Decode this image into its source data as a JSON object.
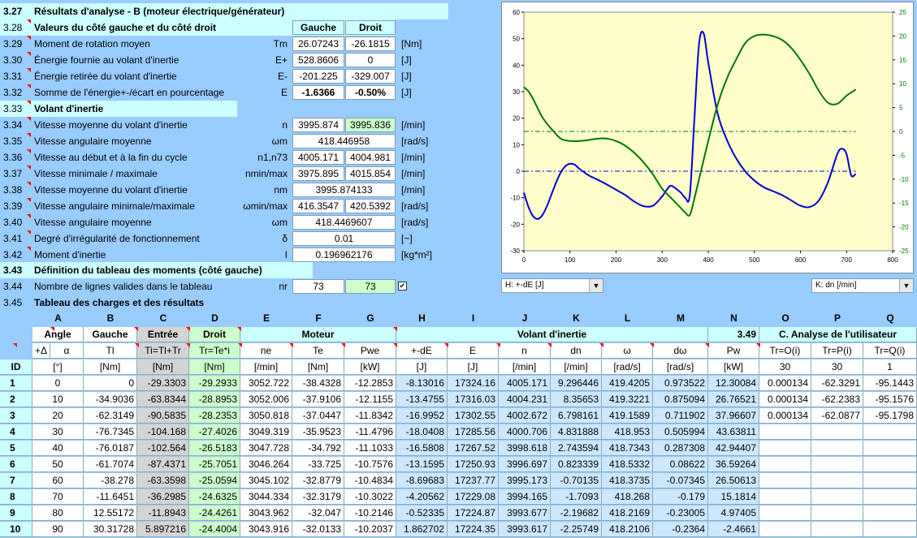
{
  "section_title": {
    "num": "3.27",
    "text": "Résultats d'analyse - B (moteur électrique/générateur)"
  },
  "rows": [
    {
      "num": "3.28",
      "label": "Valeurs du côté gauche et du côté droit",
      "bold": true,
      "sym": "",
      "left": "Gauche",
      "right": "Droit",
      "unit": ""
    },
    {
      "num": "3.29",
      "label": "Moment de rotation moyen",
      "sym": "Tm",
      "left": "26.07243",
      "right": "-26.1815",
      "unit": "[Nm]"
    },
    {
      "num": "3.30",
      "label": "Énergie fournie au volant d'inertie",
      "sym": "E+",
      "left": "528.8606",
      "right": "0",
      "unit": "[J]"
    },
    {
      "num": "3.31",
      "label": "Énergie retirée du volant d'inertie",
      "sym": "E-",
      "left": "-201.225",
      "right": "-329.007",
      "unit": "[J]"
    },
    {
      "num": "3.32",
      "label": "Somme de l'énergie+-/écart en pourcentage",
      "sym": "E",
      "left": "-1.6366",
      "right": "-0.50%",
      "unit": "[J]"
    },
    {
      "num": "3.33",
      "label": "Volant d'inertie",
      "bold": true
    },
    {
      "num": "3.34",
      "label": "Vitesse moyenne du volant d'inertie",
      "sym": "n",
      "left": "3995.874",
      "right": "3995.836",
      "unit": "[/min]"
    },
    {
      "num": "3.35",
      "label": "Vitesse angulaire moyenne",
      "sym": "ωm",
      "span": "418.446958",
      "unit": "[rad/s]"
    },
    {
      "num": "3.36",
      "label": "Vitesse au début et à la fin du cycle",
      "sym": "n1,n73",
      "left": "4005.171",
      "right": "4004.981",
      "unit": "[/min]"
    },
    {
      "num": "3.37",
      "label": "Vitesse minimale / maximale",
      "sym": "nmin/max",
      "left": "3975.895",
      "right": "4015.854",
      "unit": "[/min]"
    },
    {
      "num": "3.38",
      "label": "Vitesse moyenne du volant d'inertie",
      "sym": "nm",
      "span": "3995.874133",
      "unit": "[/min]"
    },
    {
      "num": "3.39",
      "label": "Vitesse angulaire minimale/maximale",
      "sym": "ωmin/max",
      "left": "416.3547",
      "right": "420.5392",
      "unit": "[rad/s]"
    },
    {
      "num": "3.40",
      "label": "Vitesse angulaire moyenne",
      "sym": "ωm",
      "span": "418.4469607",
      "unit": "[rad/s]"
    },
    {
      "num": "3.41",
      "label": "Degré d'irrégularité de fonctionnement",
      "sym": "δ",
      "span": "0.01",
      "unit": "[~]"
    },
    {
      "num": "3.42",
      "label": "Moment d'inertie",
      "sym": "I",
      "span": "0.196962176",
      "unit": "[kg*m²]"
    }
  ],
  "section2_title": {
    "num": "3.43",
    "text": "Définition du tableau des moments (côté gauche)"
  },
  "row344": {
    "num": "3.44",
    "label": "Nombre de lignes valides dans le tableau",
    "sym": "nr",
    "left": "73",
    "right": "73"
  },
  "row345": {
    "num": "3.45",
    "label": "Tableau des charges et des résultats"
  },
  "dropdown_h": "H:   +-dE [J]",
  "dropdown_k": "K:   dn [/min]",
  "chart_data": {
    "type": "line",
    "x_range": [
      0,
      800
    ],
    "x_ticks": [
      0,
      100,
      200,
      300,
      400,
      500,
      600,
      700,
      800
    ],
    "y_left_range": [
      -30,
      60
    ],
    "y_left_ticks": [
      60,
      50,
      40,
      30,
      20,
      10,
      0,
      -10,
      -20,
      -30
    ],
    "y_right_range": [
      -25,
      25
    ],
    "y_right_ticks": [
      25,
      20,
      15,
      10,
      5,
      0,
      -5,
      -10,
      -15,
      -20,
      -25
    ],
    "series": [
      {
        "axis": "left",
        "color": "#0000cc",
        "x": [
          0,
          10,
          20,
          30,
          40,
          50,
          60,
          70,
          80,
          90,
          100,
          110,
          120,
          140,
          160,
          180,
          200,
          220,
          240,
          260,
          280,
          300,
          310,
          320,
          340,
          350,
          360,
          370,
          380,
          390,
          400,
          420,
          440,
          460,
          480,
          500,
          520,
          540,
          560,
          580,
          600,
          620,
          640,
          660,
          680,
          690,
          700,
          710,
          720
        ],
        "y": [
          -8.1,
          -13.5,
          -17,
          -18,
          -16.6,
          -13.2,
          -8.7,
          -4.2,
          -0.5,
          1.9,
          2.8,
          2.5,
          1.0,
          -1.5,
          -3.2,
          -5.0,
          -7.0,
          -9.0,
          -11.5,
          -13.2,
          -13.0,
          -9.5,
          -7.0,
          -5.5,
          -8.0,
          -10.0,
          -9.0,
          20.0,
          48.0,
          52.0,
          41.0,
          22.0,
          12.0,
          5.0,
          0.0,
          -3.5,
          -6.0,
          -7.5,
          -9.0,
          -11.0,
          -13.0,
          -13.5,
          -11.0,
          -4.0,
          6.5,
          8.5,
          6.5,
          -1.5,
          -1.0
        ]
      },
      {
        "axis": "right",
        "color": "#007700",
        "x": [
          0,
          10,
          20,
          40,
          60,
          80,
          100,
          120,
          140,
          160,
          180,
          200,
          220,
          240,
          260,
          280,
          300,
          320,
          340,
          350,
          360,
          370,
          380,
          400,
          420,
          440,
          460,
          480,
          500,
          520,
          540,
          560,
          580,
          600,
          620,
          640,
          660,
          680,
          700,
          720
        ],
        "y": [
          9.3,
          8.4,
          6.8,
          3.0,
          0.5,
          -1.5,
          -2.0,
          -2.0,
          -1.8,
          -1.5,
          -1.5,
          -2.0,
          -3.0,
          -4.5,
          -6.5,
          -9.0,
          -12.0,
          -14.0,
          -16.0,
          -17.0,
          -17.5,
          -14.0,
          -10.0,
          -2.0,
          5.5,
          11.0,
          15.0,
          18.5,
          20.0,
          20.3,
          20.0,
          19.2,
          17.5,
          15.0,
          12.0,
          8.5,
          6.0,
          5.8,
          7.5,
          8.8
        ]
      }
    ],
    "hlines": [
      {
        "axis": "left",
        "y": 15,
        "color": "#007700"
      },
      {
        "axis": "left",
        "y": 0,
        "color": "#0000cc"
      }
    ]
  },
  "columns": [
    "A",
    "B",
    "C",
    "D",
    "E",
    "F",
    "G",
    "H",
    "I",
    "J",
    "K",
    "L",
    "M",
    "N",
    "O",
    "P",
    "Q"
  ],
  "group_headers": {
    "angle": "Angle",
    "gauche": "Gauche",
    "entree": "Entrée",
    "droit": "Droit",
    "moteur": "Moteur",
    "volant": "Volant d'inertie",
    "volant_num": "3.49",
    "analyse": "C. Analyse de l'utilisateur"
  },
  "sub_headers": [
    "+Δ",
    "α",
    "Tl",
    "Ti=Tl+Tr",
    "Tr=Te*i",
    "ne",
    "Te",
    "Pwe",
    "+-dE",
    "E",
    "n",
    "dn",
    "ω",
    "dω",
    "Pw",
    "Tr=O(i)",
    "Tr=P(i)",
    "Tr=Q(i)"
  ],
  "units": [
    "ID",
    "[°]",
    "[Nm]",
    "[Nm]",
    "[Nm]",
    "[/min]",
    "[Nm]",
    "[kW]",
    "[J]",
    "[J]",
    "[/min]",
    "[/min]",
    "[rad/s]",
    "[rad/s]",
    "[kW]",
    "30",
    "30",
    "1"
  ],
  "table_rows": [
    [
      "1",
      "0",
      "0",
      "-29.3303",
      "-29.2933",
      "3052.722",
      "-38.4328",
      "-12.2853",
      "-8.13016",
      "17324.16",
      "4005.171",
      "9.296446",
      "419.4205",
      "0.973522",
      "12.30084",
      "0.000134",
      "-62.3291",
      "-95.1443"
    ],
    [
      "2",
      "10",
      "-34.9036",
      "-63.8344",
      "-28.8953",
      "3052.006",
      "-37.9106",
      "-12.1155",
      "-13.4755",
      "17316.03",
      "4004.231",
      "8.35653",
      "419.3221",
      "0.875094",
      "26.76521",
      "0.000134",
      "-62.2383",
      "-95.1576"
    ],
    [
      "3",
      "20",
      "-62.3149",
      "-90.5835",
      "-28.2353",
      "3050.818",
      "-37.0447",
      "-11.8342",
      "-16.9952",
      "17302.55",
      "4002.672",
      "6.798161",
      "419.1589",
      "0.711902",
      "37.96607",
      "0.000134",
      "-62.0877",
      "-95.1798"
    ],
    [
      "4",
      "30",
      "-76.7345",
      "-104.168",
      "-27.4026",
      "3049.319",
      "-35.9523",
      "-11.4796",
      "-18.0408",
      "17285.56",
      "4000.706",
      "4.831888",
      "418.953",
      "0.505994",
      "43.63811",
      "",
      "",
      ""
    ],
    [
      "5",
      "40",
      "-76.0187",
      "-102.564",
      "-26.5183",
      "3047.728",
      "-34.792",
      "-11.1033",
      "-16.5808",
      "17267.52",
      "3998.618",
      "2.743594",
      "418.7343",
      "0.287308",
      "42.94407",
      "",
      "",
      ""
    ],
    [
      "6",
      "50",
      "-61.7074",
      "-87.4371",
      "-25.7051",
      "3046.264",
      "-33.725",
      "-10.7576",
      "-13.1595",
      "17250.93",
      "3996.697",
      "0.823339",
      "418.5332",
      "0.08622",
      "36.59264",
      "",
      "",
      ""
    ],
    [
      "7",
      "60",
      "-38.278",
      "-63.3598",
      "-25.0594",
      "3045.102",
      "-32.8779",
      "-10.4834",
      "-8.69683",
      "17237.77",
      "3995.173",
      "-0.70135",
      "418.3735",
      "-0.07345",
      "26.50613",
      "",
      "",
      ""
    ],
    [
      "8",
      "70",
      "-11.6451",
      "-36.2985",
      "-24.6325",
      "3044.334",
      "-32.3179",
      "-10.3022",
      "-4.20562",
      "17229.08",
      "3994.165",
      "-1.7093",
      "418.268",
      "-0.179",
      "15.1814",
      "",
      "",
      ""
    ],
    [
      "9",
      "80",
      "12.55172",
      "-11.8943",
      "-24.4261",
      "3043.962",
      "-32.047",
      "-10.2146",
      "-0.52335",
      "17224.87",
      "3993.677",
      "-2.19682",
      "418.2169",
      "-0.23005",
      "4.97405",
      "",
      "",
      ""
    ],
    [
      "10",
      "90",
      "30.31728",
      "5.897216",
      "-24.4004",
      "3043.916",
      "-32.0133",
      "-10.2037",
      "1.862702",
      "17224.35",
      "3993.617",
      "-2.25749",
      "418.2106",
      "-0.2364",
      "-2.4661",
      "",
      "",
      ""
    ]
  ]
}
